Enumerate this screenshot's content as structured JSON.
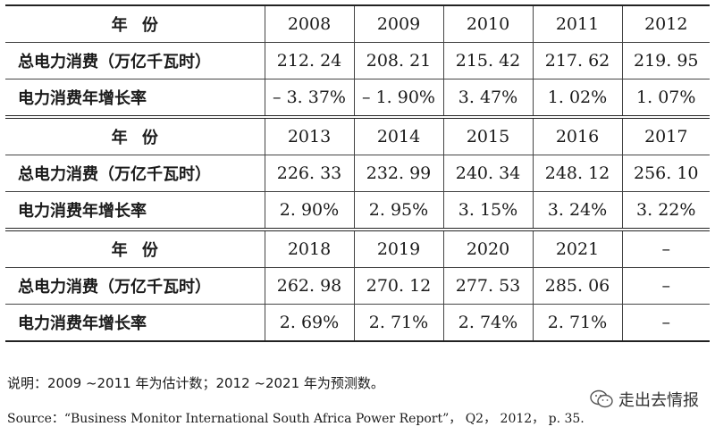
{
  "blocks": [
    {
      "header_label": "年份",
      "years": [
        "2008",
        "2009",
        "2010",
        "2011",
        "2012"
      ],
      "consumption_label": "总电力消费（万亿千瓦时）",
      "consumption": [
        "212. 24",
        "208. 21",
        "215. 42",
        "217. 62",
        "219. 95"
      ],
      "growth_label": "电力消费年增长率",
      "growth": [
        "– 3. 37%",
        "– 1. 90%",
        "3. 47%",
        "1. 02%",
        "1. 07%"
      ]
    },
    {
      "header_label": "年份",
      "years": [
        "2013",
        "2014",
        "2015",
        "2016",
        "2017"
      ],
      "consumption_label": "总电力消费（万亿千瓦时）",
      "consumption": [
        "226. 33",
        "232. 99",
        "240. 34",
        "248. 12",
        "256. 10"
      ],
      "growth_label": "电力消费年增长率",
      "growth": [
        "2. 90%",
        "2. 95%",
        "3. 15%",
        "3. 24%",
        "3. 22%"
      ]
    },
    {
      "header_label": "年份",
      "years": [
        "2018",
        "2019",
        "2020",
        "2021",
        "–"
      ],
      "consumption_label": "总电力消费（万亿千瓦时）",
      "consumption": [
        "262. 98",
        "270. 12",
        "277. 53",
        "285. 06",
        "–"
      ],
      "growth_label": "电力消费年增长率",
      "growth": [
        "2. 69%",
        "2. 71%",
        "2. 74%",
        "2. 71%",
        "–"
      ]
    }
  ],
  "note": "说明：2009 ~2011 年为估计数；2012 ~2021 年为预测数。",
  "source": "Source：“Business Monitor International South Africa Power Report”， Q2， 2012， p. 35.",
  "watermark": {
    "icon": "wechat-icon",
    "text": "走出去情报"
  }
}
